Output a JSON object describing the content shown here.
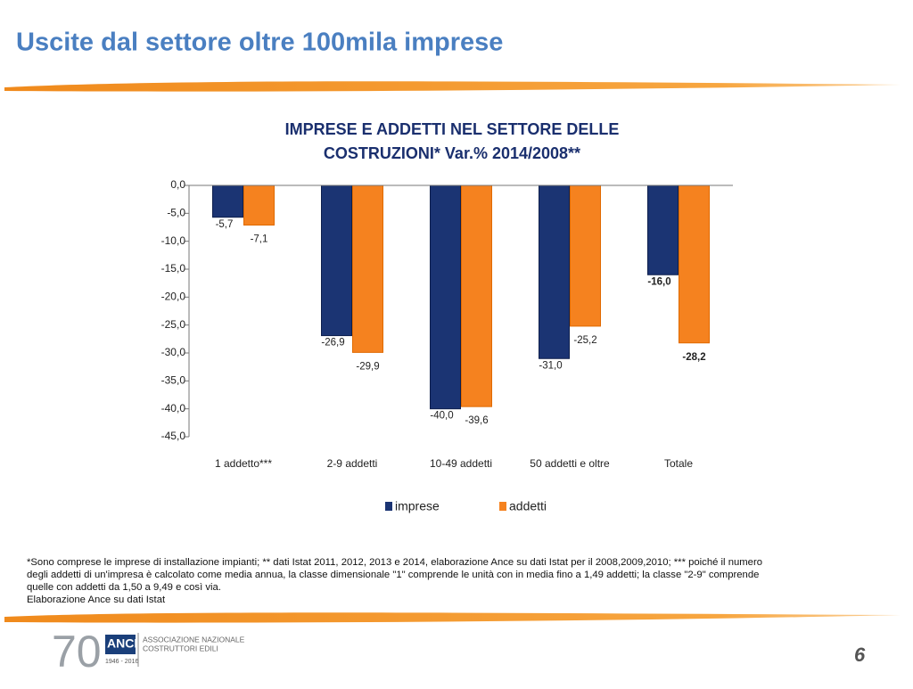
{
  "slide_title": "Uscite dal settore oltre 100mila imprese",
  "chart_data": {
    "type": "bar",
    "title": [
      "IMPRESE  E ADDETTI  NEL SETTORE DELLE",
      "COSTRUZIONI* Var.% 2014/2008**"
    ],
    "categories": [
      "1 addetto***",
      "2-9 addetti",
      "10-49 addetti",
      "50  addetti e oltre",
      "Totale"
    ],
    "series": [
      {
        "name": "imprese",
        "color": "#1b3473",
        "values": [
          -5.7,
          -26.9,
          -40.0,
          -31.0,
          -16.0
        ],
        "value_labels": [
          "-5,7",
          "-26,9",
          "-40,0",
          "-31,0",
          "-16,0"
        ]
      },
      {
        "name": "addetti",
        "color": "#f5821f",
        "values": [
          -7.1,
          -29.9,
          -39.6,
          -25.2,
          -28.2
        ],
        "value_labels": [
          "-7,1",
          "-29,9",
          "-39,6",
          "-25,2",
          "-28,2"
        ]
      }
    ],
    "ylim": [
      -45,
      0
    ],
    "yticks": [
      {
        "value": 0,
        "label": "0,0"
      },
      {
        "value": -5,
        "label": "-5,0"
      },
      {
        "value": -10,
        "label": "-10,0"
      },
      {
        "value": -15,
        "label": "-15,0"
      },
      {
        "value": -20,
        "label": "-20,0"
      },
      {
        "value": -25,
        "label": "-25,0"
      },
      {
        "value": -30,
        "label": "-30,0"
      },
      {
        "value": -35,
        "label": "-35,0"
      },
      {
        "value": -40,
        "label": "-40,0"
      },
      {
        "value": -45,
        "label": "-45,0"
      }
    ],
    "grid": false,
    "legend": "bottom"
  },
  "footnote": [
    "*Sono comprese le imprese di installazione impianti; ** dati Istat 2011, 2012, 2013 e 2014, elaborazione Ance su dati Istat per il 2008,2009,2010; *** poiché il numero",
    "degli addetti di un'impresa è calcolato come media annua, la classe dimensionale \"1\" comprende le unità con in media fino a 1,49 addetti; la classe \"2-9\" comprende",
    "quelle con addetti da 1,50 a 9,49 e così via."
  ],
  "source": "Elaborazione Ance su dati Istat",
  "logo": {
    "number": "70",
    "name": "ANCE",
    "years": "1946 - 2016",
    "line1": "ASSOCIAZIONE NAZIONALE",
    "line2": "COSTRUTTORI EDILI"
  },
  "page_number": "6"
}
